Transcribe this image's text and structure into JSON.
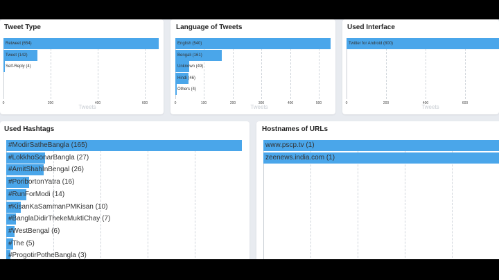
{
  "panels": {
    "tweet_type": {
      "title": "Tweet Type",
      "axis_title": "Tweets",
      "ticks": [
        "0",
        "200",
        "400",
        "600"
      ]
    },
    "language": {
      "title": "Language of Tweets",
      "axis_title": "Tweets",
      "ticks": [
        "0",
        "100",
        "200",
        "300",
        "400",
        "500"
      ]
    },
    "interface": {
      "title": "Used Interface",
      "axis_title": "Tweets",
      "ticks": [
        "0",
        "200",
        "400",
        "600"
      ]
    },
    "hashtags": {
      "title": "Used Hashtags"
    },
    "hostnames": {
      "title": "Hostnames of URLs"
    }
  },
  "chart_data": [
    {
      "type": "bar",
      "orientation": "horizontal",
      "title": "Tweet Type",
      "xlabel": "Tweets",
      "categories": [
        "Retweet",
        "Tweet",
        "Self-Reply"
      ],
      "values": [
        654,
        142,
        4
      ],
      "labels": [
        "Retweet (654)",
        "Tweet (142)",
        "Self-Reply (4)"
      ],
      "xlim": [
        0,
        654
      ],
      "grid": true
    },
    {
      "type": "bar",
      "orientation": "horizontal",
      "title": "Language of Tweets",
      "xlabel": "Tweets",
      "categories": [
        "English",
        "Bengali",
        "Unknown",
        "Hindi",
        "Others"
      ],
      "values": [
        540,
        161,
        49,
        46,
        4
      ],
      "labels": [
        "English (540)",
        "Bengali (161)",
        "Unknown (49)",
        "Hindi (46)",
        "Others (4)"
      ],
      "xlim": [
        0,
        540
      ],
      "grid": true
    },
    {
      "type": "bar",
      "orientation": "horizontal",
      "title": "Used Interface",
      "xlabel": "Tweets",
      "categories": [
        "Twitter for Android"
      ],
      "values": [
        800
      ],
      "labels": [
        "Twitter for Android (800)"
      ],
      "xlim": [
        0,
        800
      ],
      "grid": true
    },
    {
      "type": "bar",
      "orientation": "horizontal",
      "title": "Used Hashtags",
      "categories": [
        "#ModirSatheBangla",
        "#LokkhoSonarBangla",
        "#AmitShahInBengal",
        "#PoribortonYatra",
        "#RunForModi",
        "#KisanKaSammanPMKisan",
        "#BanglaDidirThekeMuktiChay",
        "#WestBengal",
        "#The",
        "#ProgotirPotheBangla"
      ],
      "values": [
        165,
        27,
        26,
        16,
        14,
        10,
        7,
        6,
        5,
        3
      ],
      "labels": [
        "#ModirSatheBangla (165)",
        "#LokkhoSonarBangla (27)",
        "#AmitShahInBengal (26)",
        "#PoribortonYatra (16)",
        "#RunForModi (14)",
        "#KisanKaSammanPMKisan (10)",
        "#BanglaDidirThekeMuktiChay (7)",
        "#WestBengal (6)",
        "#The (5)",
        "#ProgotirPotheBangla (3)"
      ],
      "xlim": [
        0,
        165
      ],
      "grid": true
    },
    {
      "type": "bar",
      "orientation": "horizontal",
      "title": "Hostnames of URLs",
      "categories": [
        "www.pscp.tv",
        "zeenews.india.com"
      ],
      "values": [
        1,
        1
      ],
      "labels": [
        "www.pscp.tv (1)",
        "zeenews.india.com (1)"
      ],
      "xlim": [
        0,
        1
      ],
      "grid": true
    }
  ]
}
